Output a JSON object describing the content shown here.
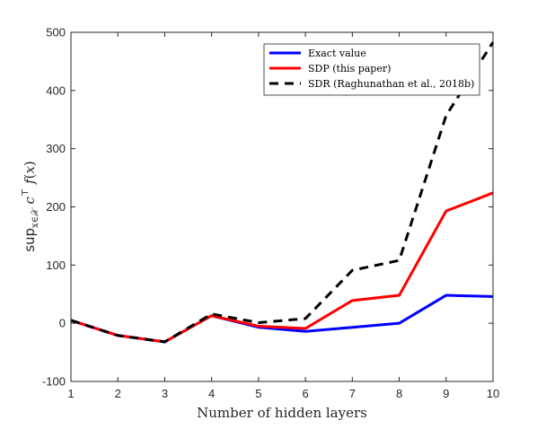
{
  "chart_data": {
    "type": "line",
    "title": "",
    "xlabel": "Number of hidden layers",
    "ylabel": "sup_{x∈X} c^⊤ f(x)",
    "xlim": [
      1,
      10
    ],
    "ylim": [
      -100,
      500
    ],
    "xticks": [
      1,
      2,
      3,
      4,
      5,
      6,
      7,
      8,
      9,
      10
    ],
    "yticks": [
      -100,
      0,
      100,
      200,
      300,
      400,
      500
    ],
    "grid": false,
    "legend_position": "top-right",
    "x": [
      1,
      2,
      3,
      4,
      5,
      6,
      7,
      8,
      9,
      10
    ],
    "series": [
      {
        "name": "Exact value",
        "color": "#0000ff",
        "style": "solid",
        "values": [
          5,
          -21,
          -32,
          13,
          -7,
          -14,
          -7,
          0,
          48,
          46
        ]
      },
      {
        "name": "SDP (this paper)",
        "color": "#ff0000",
        "style": "solid",
        "values": [
          5,
          -21,
          -32,
          13,
          -5,
          -9,
          39,
          48,
          193,
          224
        ]
      },
      {
        "name": "SDR (Raghunathan et al., 2018b)",
        "color": "#000000",
        "style": "dashed",
        "values": [
          5,
          -21,
          -32,
          16,
          1,
          8,
          91,
          108,
          357,
          483
        ]
      }
    ]
  }
}
